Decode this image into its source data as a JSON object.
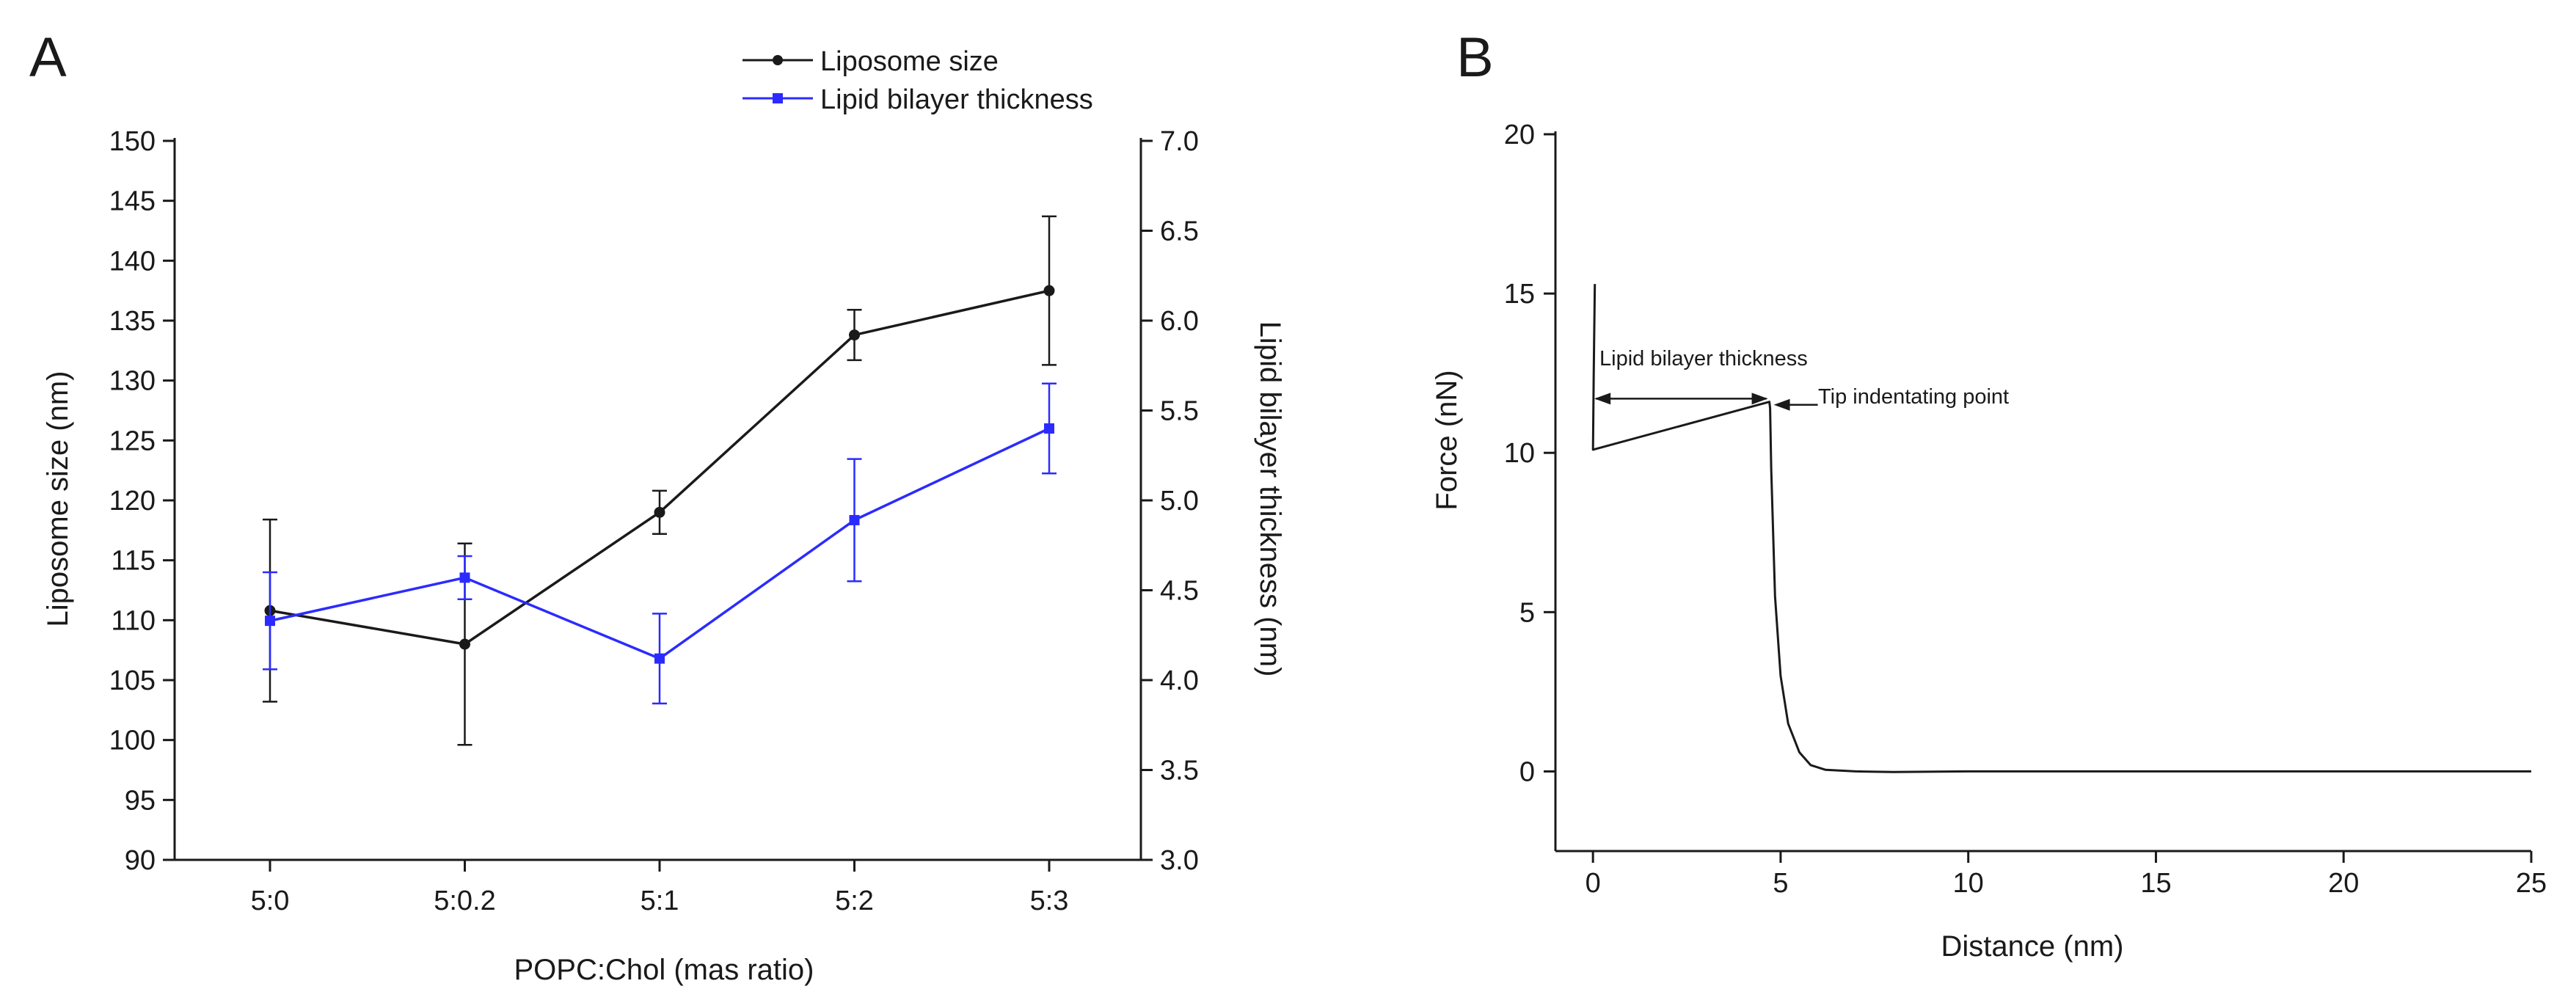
{
  "panels": {
    "a": {
      "label": "A"
    },
    "b": {
      "label": "B"
    }
  },
  "colors": {
    "series_size": "#1a1a1a",
    "series_thickness": "#2b2bff",
    "axis": "#1a1a1a"
  },
  "chart_data": [
    {
      "panel": "A",
      "type": "line",
      "xlabel": "POPC:Chol (mas ratio)",
      "ylabel": "Liposome size (nm)",
      "y2label": "Lipid bilayer thickness (nm)",
      "categories": [
        "5:0",
        "5:0.2",
        "5:1",
        "5:2",
        "5:3"
      ],
      "ylim": [
        90,
        150
      ],
      "yticks": [
        "90",
        "95",
        "100",
        "105",
        "110",
        "115",
        "120",
        "125",
        "130",
        "135",
        "140",
        "145",
        "150"
      ],
      "y2lim": [
        3.0,
        7.0
      ],
      "y2ticks": [
        "3.0",
        "3.5",
        "4.0",
        "4.5",
        "5.0",
        "5.5",
        "6.0",
        "6.5",
        "7.0"
      ],
      "legend_position": "top-center",
      "series": [
        {
          "name": "Liposome size",
          "axis": "left",
          "marker": "circle",
          "values": [
            110.8,
            108.0,
            119.0,
            133.8,
            137.5
          ],
          "errors": [
            7.6,
            8.4,
            1.8,
            2.1,
            6.2
          ]
        },
        {
          "name": "Lipid bilayer thickness",
          "axis": "right",
          "marker": "square",
          "values": [
            4.33,
            4.57,
            4.12,
            4.89,
            5.4
          ],
          "errors": [
            0.27,
            0.12,
            0.25,
            0.34,
            0.25
          ]
        }
      ]
    },
    {
      "panel": "B",
      "type": "line",
      "xlabel": "Distance (nm)",
      "ylabel": "Force (nN)",
      "xlim": [
        -1,
        25
      ],
      "xticks": [
        "0",
        "5",
        "10",
        "15",
        "20",
        "25"
      ],
      "ylim": [
        -2.5,
        20
      ],
      "yticks": [
        "0",
        "5",
        "10",
        "15",
        "20"
      ],
      "curve": {
        "x": [
          0.05,
          0.02,
          0.0,
          4.7,
          4.72,
          4.75,
          4.85,
          5.0,
          5.2,
          5.5,
          5.8,
          6.2,
          7.0,
          8.0,
          10.0,
          15.0,
          20.0,
          25.0
        ],
        "y": [
          15.3,
          12.5,
          10.1,
          11.6,
          11.4,
          9.5,
          5.5,
          3.0,
          1.5,
          0.6,
          0.2,
          0.05,
          0.0,
          -0.02,
          0.0,
          0.0,
          0.0,
          0.0
        ]
      },
      "annotations": [
        {
          "text": "Lipid bilayer thickness",
          "x_from": 0,
          "x_to": 4.7,
          "y": 11.7
        },
        {
          "text": "Tip indentating point",
          "x": 4.7,
          "y": 11.6
        }
      ]
    }
  ]
}
